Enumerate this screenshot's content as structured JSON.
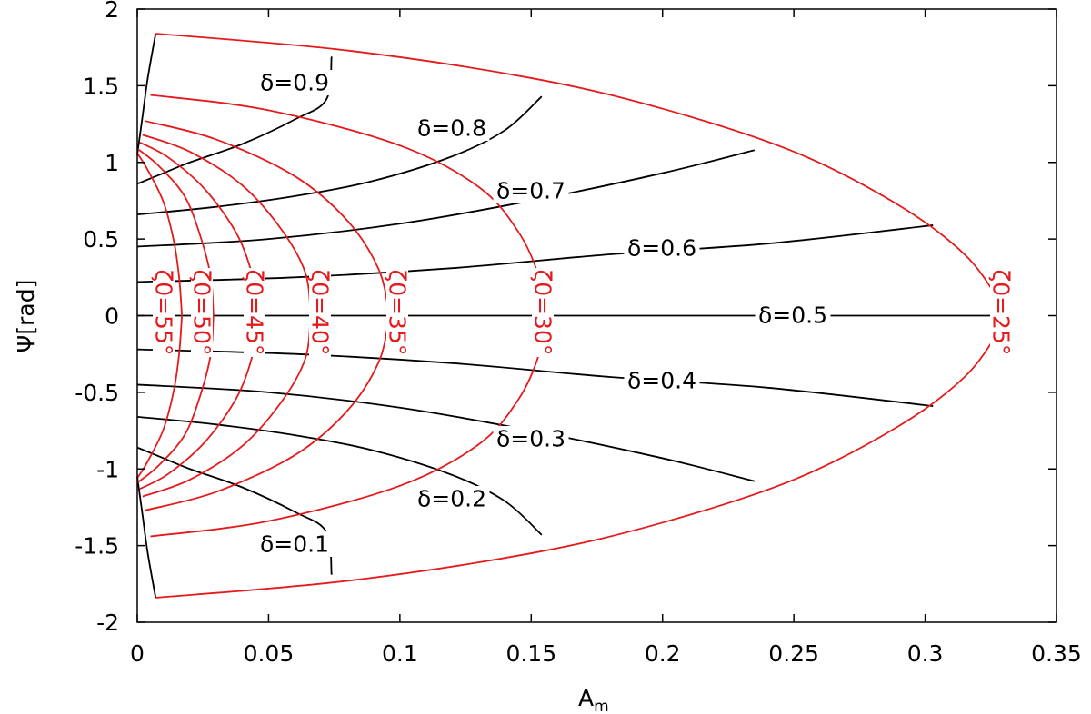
{
  "chart_data": {
    "type": "line",
    "xlabel": "A",
    "xlabel_sub": "m",
    "ylabel": "Ψ[rad]",
    "xlim": [
      0,
      0.35
    ],
    "ylim": [
      -2,
      2
    ],
    "xticks": [
      "0",
      "0.05",
      "0.1",
      "0.15",
      "0.2",
      "0.25",
      "0.3",
      "0.35"
    ],
    "yticks": [
      "2",
      "1.5",
      "1",
      "0.5",
      "0",
      "-0.5",
      "-1",
      "-1.5",
      "-2"
    ],
    "grid": false,
    "colors": {
      "delta": "#000000",
      "zeta": "#e41a1c"
    },
    "delta_curves": [
      {
        "label": "δ=0.1",
        "points": [
          [
            0.0,
            -0.86
          ],
          [
            0.01,
            -0.93
          ],
          [
            0.02,
            -1.0
          ],
          [
            0.04,
            -1.12
          ],
          [
            0.06,
            -1.28
          ],
          [
            0.072,
            -1.41
          ],
          [
            0.074,
            -1.69
          ]
        ]
      },
      {
        "label": "δ=0.2",
        "points": [
          [
            0.0,
            -0.66
          ],
          [
            0.03,
            -0.71
          ],
          [
            0.06,
            -0.78
          ],
          [
            0.09,
            -0.88
          ],
          [
            0.12,
            -1.04
          ],
          [
            0.14,
            -1.21
          ],
          [
            0.154,
            -1.43
          ]
        ]
      },
      {
        "label": "δ=0.3",
        "points": [
          [
            0.0,
            -0.45
          ],
          [
            0.05,
            -0.5
          ],
          [
            0.1,
            -0.6
          ],
          [
            0.15,
            -0.75
          ],
          [
            0.2,
            -0.93
          ],
          [
            0.235,
            -1.08
          ]
        ]
      },
      {
        "label": "δ=0.4",
        "points": [
          [
            0.0,
            -0.22
          ],
          [
            0.06,
            -0.25
          ],
          [
            0.12,
            -0.31
          ],
          [
            0.18,
            -0.4
          ],
          [
            0.24,
            -0.47
          ],
          [
            0.303,
            -0.59
          ]
        ]
      },
      {
        "label": "δ=0.5",
        "points": [
          [
            0.0,
            0.0
          ],
          [
            0.33,
            0.0
          ]
        ]
      },
      {
        "label": "δ=0.6",
        "points": [
          [
            0.0,
            0.22
          ],
          [
            0.06,
            0.25
          ],
          [
            0.12,
            0.31
          ],
          [
            0.18,
            0.4
          ],
          [
            0.24,
            0.47
          ],
          [
            0.303,
            0.59
          ]
        ]
      },
      {
        "label": "δ=0.7",
        "points": [
          [
            0.0,
            0.45
          ],
          [
            0.05,
            0.5
          ],
          [
            0.1,
            0.6
          ],
          [
            0.15,
            0.75
          ],
          [
            0.2,
            0.93
          ],
          [
            0.235,
            1.08
          ]
        ]
      },
      {
        "label": "δ=0.8",
        "points": [
          [
            0.0,
            0.66
          ],
          [
            0.03,
            0.71
          ],
          [
            0.06,
            0.78
          ],
          [
            0.09,
            0.88
          ],
          [
            0.12,
            1.04
          ],
          [
            0.14,
            1.21
          ],
          [
            0.154,
            1.43
          ]
        ]
      },
      {
        "label": "δ=0.9",
        "points": [
          [
            0.0,
            0.86
          ],
          [
            0.01,
            0.93
          ],
          [
            0.02,
            1.0
          ],
          [
            0.04,
            1.12
          ],
          [
            0.06,
            1.28
          ],
          [
            0.072,
            1.41
          ],
          [
            0.074,
            1.69
          ]
        ]
      }
    ],
    "boundary_left": [
      [
        0.0,
        1.05
      ],
      [
        0.002,
        1.3
      ],
      [
        0.004,
        1.55
      ],
      [
        0.007,
        1.84
      ]
    ],
    "boundary_left_lower": [
      [
        0.0,
        -1.05
      ],
      [
        0.002,
        -1.3
      ],
      [
        0.004,
        -1.55
      ],
      [
        0.007,
        -1.84
      ]
    ],
    "zeta_curves": [
      {
        "label": "ζ0=25°",
        "points": [
          [
            0.007,
            1.84
          ],
          [
            0.08,
            1.73
          ],
          [
            0.15,
            1.55
          ],
          [
            0.2,
            1.35
          ],
          [
            0.25,
            1.07
          ],
          [
            0.29,
            0.72
          ],
          [
            0.315,
            0.4
          ],
          [
            0.328,
            0.1
          ],
          [
            0.33,
            0.0
          ]
        ]
      },
      {
        "label": "ζ0=30°",
        "points": [
          [
            0.005,
            1.44
          ],
          [
            0.05,
            1.34
          ],
          [
            0.1,
            1.11
          ],
          [
            0.13,
            0.84
          ],
          [
            0.145,
            0.55
          ],
          [
            0.153,
            0.25
          ],
          [
            0.155,
            0.0
          ]
        ]
      },
      {
        "label": "ζ0=35°",
        "points": [
          [
            0.003,
            1.27
          ],
          [
            0.03,
            1.15
          ],
          [
            0.06,
            0.91
          ],
          [
            0.08,
            0.62
          ],
          [
            0.092,
            0.3
          ],
          [
            0.096,
            0.0
          ]
        ]
      },
      {
        "label": "ζ0=40°",
        "points": [
          [
            0.002,
            1.18
          ],
          [
            0.02,
            1.07
          ],
          [
            0.04,
            0.85
          ],
          [
            0.055,
            0.56
          ],
          [
            0.064,
            0.28
          ],
          [
            0.066,
            0.0
          ]
        ]
      },
      {
        "label": "ζ0=45°",
        "points": [
          [
            0.001,
            1.13
          ],
          [
            0.012,
            1.03
          ],
          [
            0.026,
            0.82
          ],
          [
            0.038,
            0.53
          ],
          [
            0.044,
            0.25
          ],
          [
            0.046,
            0.0
          ]
        ]
      },
      {
        "label": "ζ0=50°",
        "points": [
          [
            0.0,
            1.09
          ],
          [
            0.008,
            0.98
          ],
          [
            0.018,
            0.78
          ],
          [
            0.024,
            0.52
          ],
          [
            0.028,
            0.25
          ],
          [
            0.029,
            0.0
          ]
        ]
      },
      {
        "label": "ζ0=55°",
        "points": [
          [
            0.0,
            1.06
          ],
          [
            0.004,
            0.95
          ],
          [
            0.01,
            0.74
          ],
          [
            0.014,
            0.48
          ],
          [
            0.016,
            0.24
          ],
          [
            0.017,
            0.0
          ]
        ]
      }
    ],
    "annotations": {
      "delta_labels": [
        "δ=0.9",
        "δ=0.8",
        "δ=0.7",
        "δ=0.6",
        "δ=0.5",
        "δ=0.4",
        "δ=0.3",
        "δ=0.2",
        "δ=0.1"
      ],
      "zeta_labels": [
        "ζ0=55°",
        "ζ0=50°",
        "ζ0=45°",
        "ζ0=40°",
        "ζ0=35°",
        "ζ0=30°",
        "ζ0=25°"
      ]
    }
  }
}
